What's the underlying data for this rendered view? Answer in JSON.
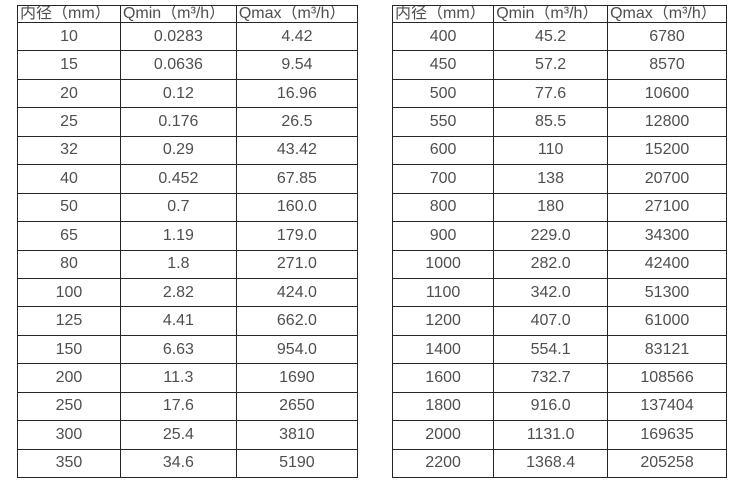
{
  "page": {
    "background_color": "#ffffff",
    "border_color": "#262626",
    "text_color": "#4f4f4f"
  },
  "tables": [
    {
      "name": "flow-table-small-diameters",
      "headers": [
        "内径（mm）",
        "Qmin（m³/h）",
        "Qmax（m³/h）"
      ],
      "rows": [
        [
          "10",
          "0.0283",
          "4.42"
        ],
        [
          "15",
          "0.0636",
          "9.54"
        ],
        [
          "20",
          "0.12",
          "16.96"
        ],
        [
          "25",
          "0.176",
          "26.5"
        ],
        [
          "32",
          "0.29",
          "43.42"
        ],
        [
          "40",
          "0.452",
          "67.85"
        ],
        [
          "50",
          "0.7",
          "160.0"
        ],
        [
          "65",
          "1.19",
          "179.0"
        ],
        [
          "80",
          "1.8",
          "271.0"
        ],
        [
          "100",
          "2.82",
          "424.0"
        ],
        [
          "125",
          "4.41",
          "662.0"
        ],
        [
          "150",
          "6.63",
          "954.0"
        ],
        [
          "200",
          "11.3",
          "1690"
        ],
        [
          "250",
          "17.6",
          "2650"
        ],
        [
          "300",
          "25.4",
          "3810"
        ],
        [
          "350",
          "34.6",
          "5190"
        ]
      ]
    },
    {
      "name": "flow-table-large-diameters",
      "headers": [
        "内径（mm）",
        "Qmin（m³/h）",
        "Qmax（m³/h）"
      ],
      "rows": [
        [
          "400",
          "45.2",
          "6780"
        ],
        [
          "450",
          "57.2",
          "8570"
        ],
        [
          "500",
          "77.6",
          "10600"
        ],
        [
          "550",
          "85.5",
          "12800"
        ],
        [
          "600",
          "110",
          "15200"
        ],
        [
          "700",
          "138",
          "20700"
        ],
        [
          "800",
          "180",
          "27100"
        ],
        [
          "900",
          "229.0",
          "34300"
        ],
        [
          "1000",
          "282.0",
          "42400"
        ],
        [
          "1100",
          "342.0",
          "51300"
        ],
        [
          "1200",
          "407.0",
          "61000"
        ],
        [
          "1400",
          "554.1",
          "83121"
        ],
        [
          "1600",
          "732.7",
          "108566"
        ],
        [
          "1800",
          "916.0",
          "137404"
        ],
        [
          "2000",
          "1131.0",
          "169635"
        ],
        [
          "2200",
          "1368.4",
          "205258"
        ]
      ]
    }
  ]
}
